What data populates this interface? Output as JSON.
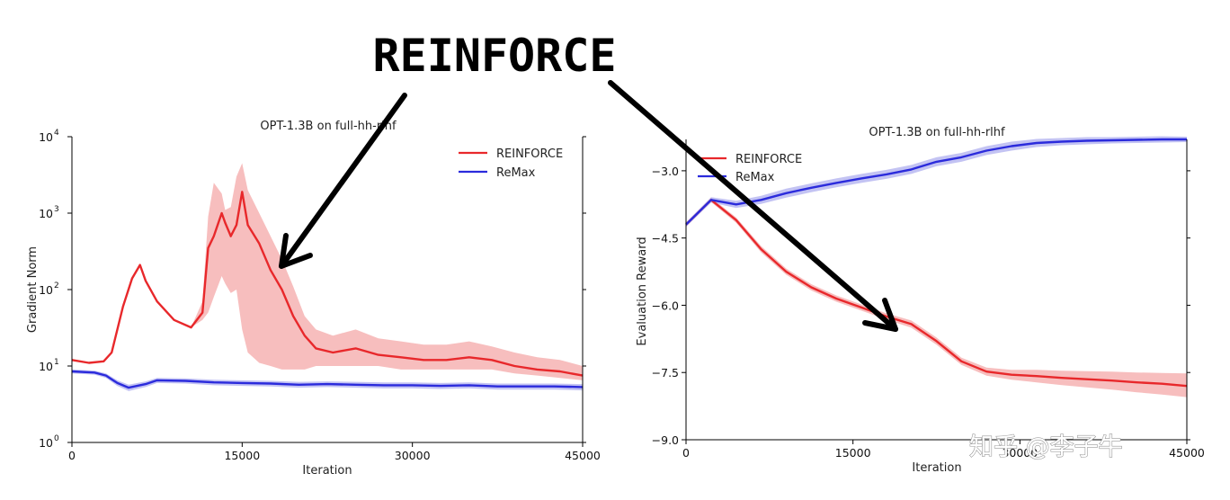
{
  "banner": "REINFORCE",
  "watermark": "知乎 @李子牛",
  "colors": {
    "reinforce": "#e8282b",
    "remax": "#2b2bdc",
    "reinforce_band": "#f4a3a3",
    "remax_band": "#a9a9ee"
  },
  "chart_data": [
    {
      "type": "line",
      "title": "OPT-1.3B on full-hh-rlhf",
      "xlabel": "Iteration",
      "ylabel": "Gradient Norm",
      "yscale": "log",
      "xlim": [
        0,
        45000
      ],
      "ylim": [
        1,
        10000
      ],
      "xticks": [
        0,
        15000,
        30000,
        45000
      ],
      "xtick_labels": [
        "0",
        "15000",
        "30000",
        "45000"
      ],
      "yticks": [
        1,
        10,
        100,
        1000,
        10000
      ],
      "ytick_labels": {
        "base": [
          "10",
          "10",
          "10",
          "10",
          "10"
        ],
        "exp": [
          "0",
          "1",
          "2",
          "3",
          "4"
        ]
      },
      "legend_position": "top-right",
      "legend": [
        "REINFORCE",
        "ReMax"
      ],
      "series": [
        {
          "name": "REINFORCE",
          "x": [
            0,
            1500,
            2800,
            3500,
            4500,
            5300,
            6000,
            6500,
            7500,
            9000,
            10500,
            11500,
            12000,
            12500,
            13200,
            13500,
            14000,
            14500,
            15000,
            15500,
            16500,
            17500,
            18500,
            19500,
            20500,
            21500,
            23000,
            25000,
            27000,
            29000,
            31000,
            33000,
            35000,
            37000,
            39000,
            41000,
            43000,
            45000
          ],
          "y": [
            12,
            11,
            11.5,
            15,
            60,
            140,
            210,
            130,
            70,
            40,
            32,
            50,
            350,
            500,
            1000,
            750,
            500,
            700,
            1900,
            700,
            400,
            180,
            100,
            45,
            25,
            17,
            15,
            17,
            14,
            13,
            12,
            12,
            13,
            12,
            10,
            9,
            8.5,
            7.5
          ],
          "band_low": [
            12,
            11,
            11.5,
            15,
            60,
            140,
            210,
            130,
            70,
            40,
            32,
            40,
            50,
            80,
            150,
            120,
            90,
            100,
            30,
            15,
            11,
            10,
            9,
            9,
            9,
            10,
            10,
            10,
            10,
            9,
            9,
            9,
            9,
            9,
            8,
            7.5,
            7,
            6.5
          ],
          "band_high": [
            12,
            11,
            11.5,
            15,
            60,
            140,
            210,
            130,
            70,
            40,
            32,
            70,
            900,
            2500,
            1800,
            1100,
            1200,
            3000,
            4500,
            2000,
            1000,
            500,
            250,
            110,
            45,
            30,
            25,
            30,
            23,
            21,
            19,
            19,
            21,
            18,
            15,
            13,
            12,
            10
          ]
        },
        {
          "name": "ReMax",
          "x": [
            0,
            2000,
            3000,
            4000,
            5000,
            6500,
            7500,
            10000,
            12500,
            15000,
            17500,
            20000,
            22500,
            25000,
            27500,
            30000,
            32500,
            35000,
            37500,
            40000,
            42500,
            45000
          ],
          "y": [
            8.5,
            8.2,
            7.5,
            6,
            5.2,
            5.8,
            6.5,
            6.4,
            6.1,
            6.0,
            5.9,
            5.7,
            5.8,
            5.7,
            5.6,
            5.6,
            5.5,
            5.6,
            5.4,
            5.4,
            5.4,
            5.3
          ],
          "band_low": [
            8.0,
            7.7,
            7.0,
            5.5,
            4.7,
            5.3,
            6.0,
            5.9,
            5.6,
            5.5,
            5.4,
            5.2,
            5.3,
            5.2,
            5.1,
            5.1,
            5.0,
            5.1,
            4.9,
            4.9,
            4.9,
            4.8
          ],
          "band_high": [
            9.0,
            8.7,
            8.0,
            6.5,
            5.7,
            6.3,
            7.0,
            6.9,
            6.6,
            6.5,
            6.4,
            6.2,
            6.3,
            6.2,
            6.1,
            6.1,
            6.0,
            6.1,
            5.9,
            5.9,
            5.9,
            5.8
          ]
        }
      ]
    },
    {
      "type": "line",
      "title": "OPT-1.3B on full-hh-rlhf",
      "xlabel": "Iteration",
      "ylabel": "Evaluation Reward",
      "xlim": [
        0,
        45000
      ],
      "ylim": [
        -9.0,
        -2.3
      ],
      "xticks": [
        0,
        15000,
        30000,
        45000
      ],
      "xtick_labels": [
        "0",
        "15000",
        "30000",
        "45000"
      ],
      "yticks": [
        -9.0,
        -7.5,
        -6.0,
        -4.5,
        -3.0
      ],
      "ytick_labels": [
        "−9.0",
        "−7.5",
        "−6.0",
        "−4.5",
        "−3.0"
      ],
      "legend_position": "top-left",
      "legend": [
        "REINFORCE",
        "ReMax"
      ],
      "series": [
        {
          "name": "REINFORCE",
          "x": [
            0,
            2250,
            4500,
            6750,
            9000,
            11250,
            13500,
            15750,
            18000,
            20250,
            22500,
            24750,
            27000,
            29250,
            31500,
            33750,
            36000,
            38250,
            40500,
            42750,
            45000
          ],
          "y": [
            -4.2,
            -3.65,
            -4.1,
            -4.75,
            -5.25,
            -5.6,
            -5.85,
            -6.05,
            -6.25,
            -6.42,
            -6.8,
            -7.25,
            -7.48,
            -7.55,
            -7.58,
            -7.62,
            -7.65,
            -7.68,
            -7.72,
            -7.75,
            -7.8
          ],
          "band_low": [
            -4.25,
            -3.7,
            -4.16,
            -4.82,
            -5.32,
            -5.67,
            -5.92,
            -6.12,
            -6.32,
            -6.5,
            -6.88,
            -7.33,
            -7.57,
            -7.66,
            -7.72,
            -7.78,
            -7.83,
            -7.88,
            -7.94,
            -7.99,
            -8.05
          ],
          "band_high": [
            -4.15,
            -3.6,
            -4.04,
            -4.68,
            -5.18,
            -5.53,
            -5.78,
            -5.98,
            -6.18,
            -6.34,
            -6.72,
            -7.17,
            -7.39,
            -7.44,
            -7.44,
            -7.46,
            -7.47,
            -7.48,
            -7.5,
            -7.51,
            -7.52
          ]
        },
        {
          "name": "ReMax",
          "x": [
            0,
            2250,
            4500,
            6750,
            9000,
            11250,
            13500,
            15750,
            18000,
            20250,
            22500,
            24750,
            27000,
            29250,
            31500,
            33750,
            36000,
            38250,
            40500,
            42750,
            45000
          ],
          "y": [
            -4.2,
            -3.65,
            -3.75,
            -3.65,
            -3.5,
            -3.38,
            -3.27,
            -3.17,
            -3.08,
            -2.97,
            -2.8,
            -2.7,
            -2.55,
            -2.45,
            -2.38,
            -2.35,
            -2.33,
            -2.32,
            -2.31,
            -2.3,
            -2.3
          ],
          "band_low": [
            -4.25,
            -3.71,
            -3.83,
            -3.74,
            -3.6,
            -3.48,
            -3.37,
            -3.27,
            -3.18,
            -3.07,
            -2.9,
            -2.8,
            -2.65,
            -2.55,
            -2.47,
            -2.43,
            -2.41,
            -2.39,
            -2.38,
            -2.37,
            -2.36
          ],
          "band_high": [
            -4.15,
            -3.59,
            -3.67,
            -3.56,
            -3.4,
            -3.28,
            -3.17,
            -3.07,
            -2.98,
            -2.87,
            -2.7,
            -2.6,
            -2.45,
            -2.35,
            -2.29,
            -2.27,
            -2.25,
            -2.25,
            -2.24,
            -2.23,
            -2.24
          ]
        }
      ]
    }
  ]
}
